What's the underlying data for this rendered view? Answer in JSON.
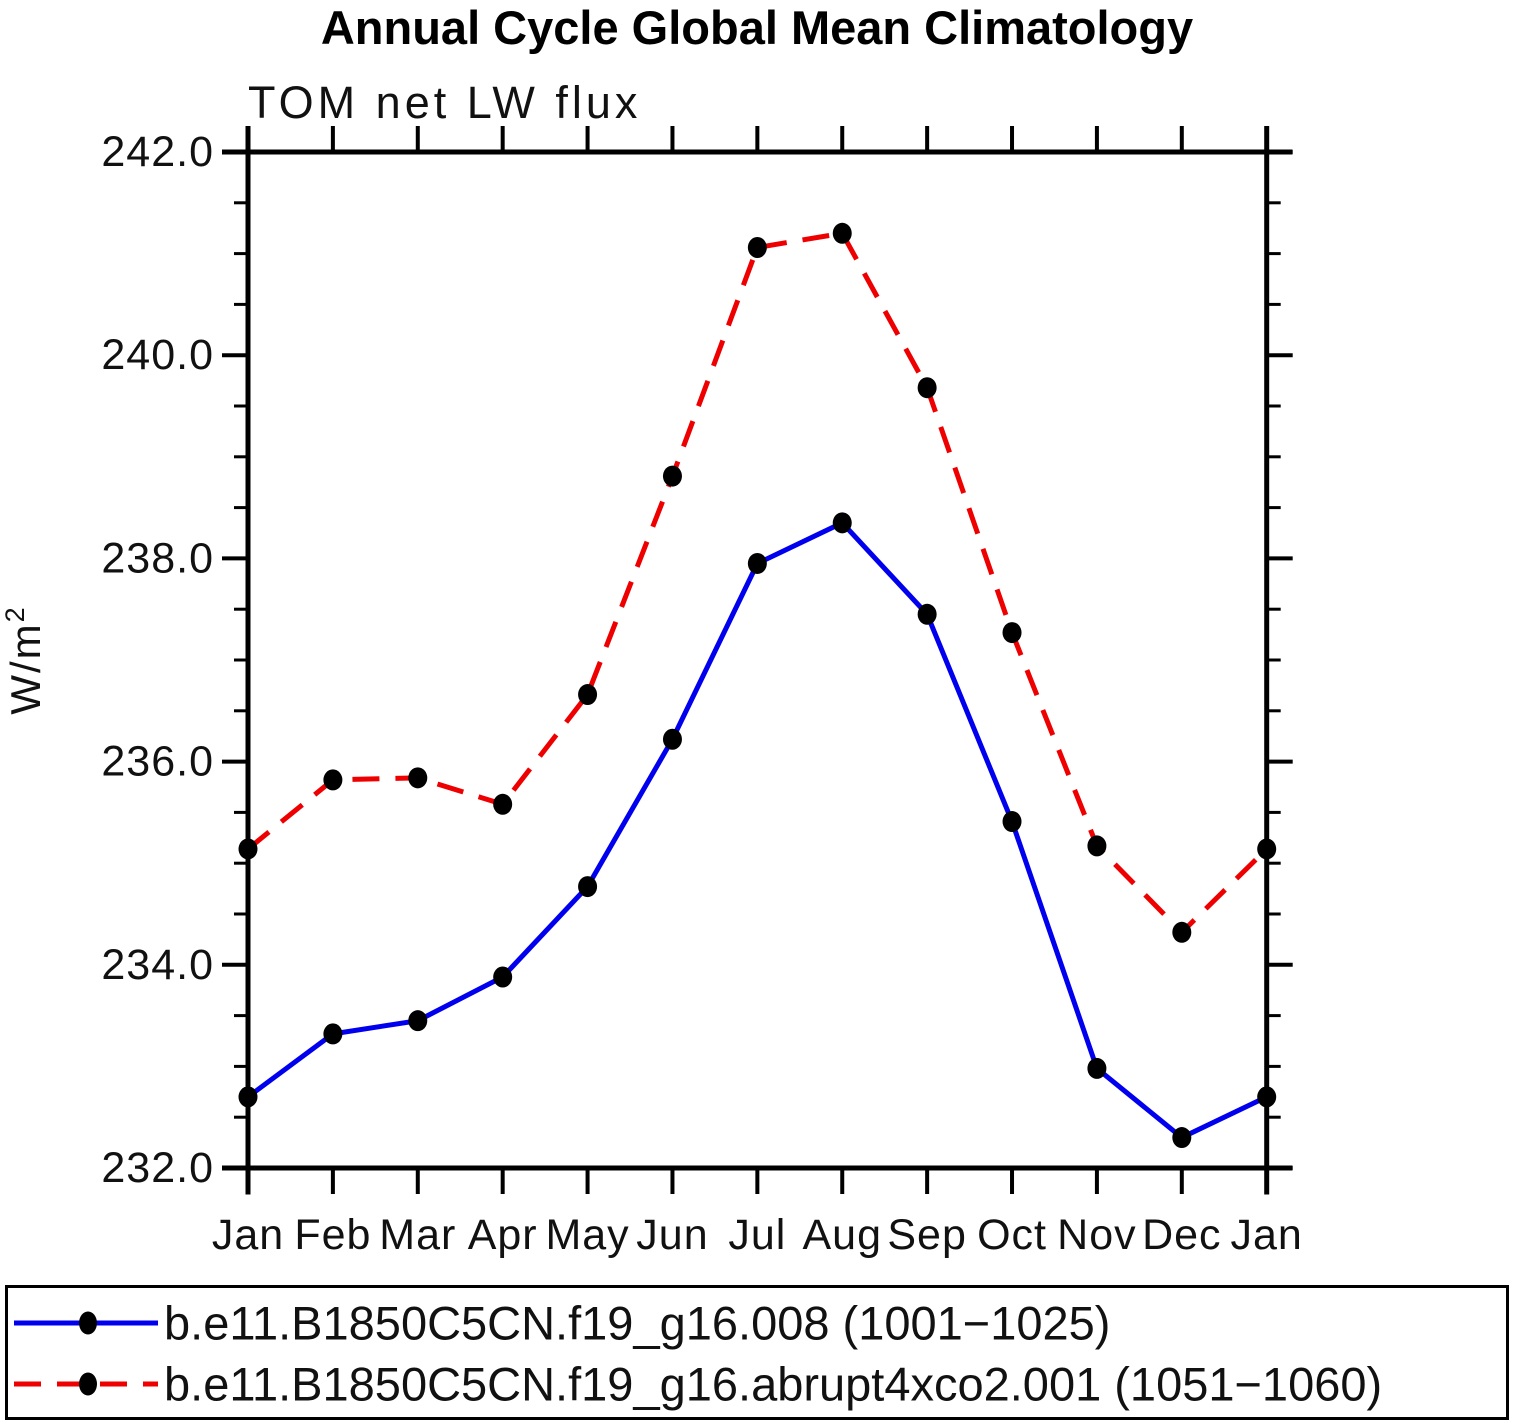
{
  "page": {
    "background": "#ffffff"
  },
  "chart_data": {
    "type": "line",
    "title": "Annual Cycle Global Mean Climatology",
    "subtitle": "TOM net LW flux",
    "ylabel": "W/m²",
    "ylabel_base": "W/m",
    "ylabel_superscript": "2",
    "xlabel": "",
    "categories": [
      "Jan",
      "Feb",
      "Mar",
      "Apr",
      "May",
      "Jun",
      "Jul",
      "Aug",
      "Sep",
      "Oct",
      "Nov",
      "Dec",
      "Jan"
    ],
    "ylim": [
      232.0,
      242.0
    ],
    "y_major_ticks": [
      232.0,
      234.0,
      236.0,
      238.0,
      240.0,
      242.0
    ],
    "y_major_tick_labels": [
      "232.0",
      "234.0",
      "236.0",
      "238.0",
      "240.0",
      "242.0"
    ],
    "y_minor_step": 0.5,
    "grid": false,
    "legend_position": "bottom-box",
    "axis_color": "#000000",
    "marker_color": "#000000",
    "series": [
      {
        "name": "b.e11.B1850C5CN.f19_g16.008 (1001−1025)",
        "color": "#0000ee",
        "line_style": "solid",
        "marker": "filled-circle",
        "values": [
          232.7,
          233.32,
          233.45,
          233.88,
          234.77,
          236.22,
          237.95,
          238.35,
          237.45,
          235.41,
          232.98,
          232.3,
          232.7
        ]
      },
      {
        "name": "b.e11.B1850C5CN.f19_g16.abrupt4xco2.001 (1051−1060)",
        "color": "#ee0000",
        "line_style": "dashed",
        "marker": "filled-circle",
        "values": [
          235.14,
          235.82,
          235.84,
          235.58,
          236.66,
          238.81,
          241.06,
          241.2,
          239.68,
          237.27,
          235.17,
          234.32,
          235.14
        ]
      }
    ]
  }
}
